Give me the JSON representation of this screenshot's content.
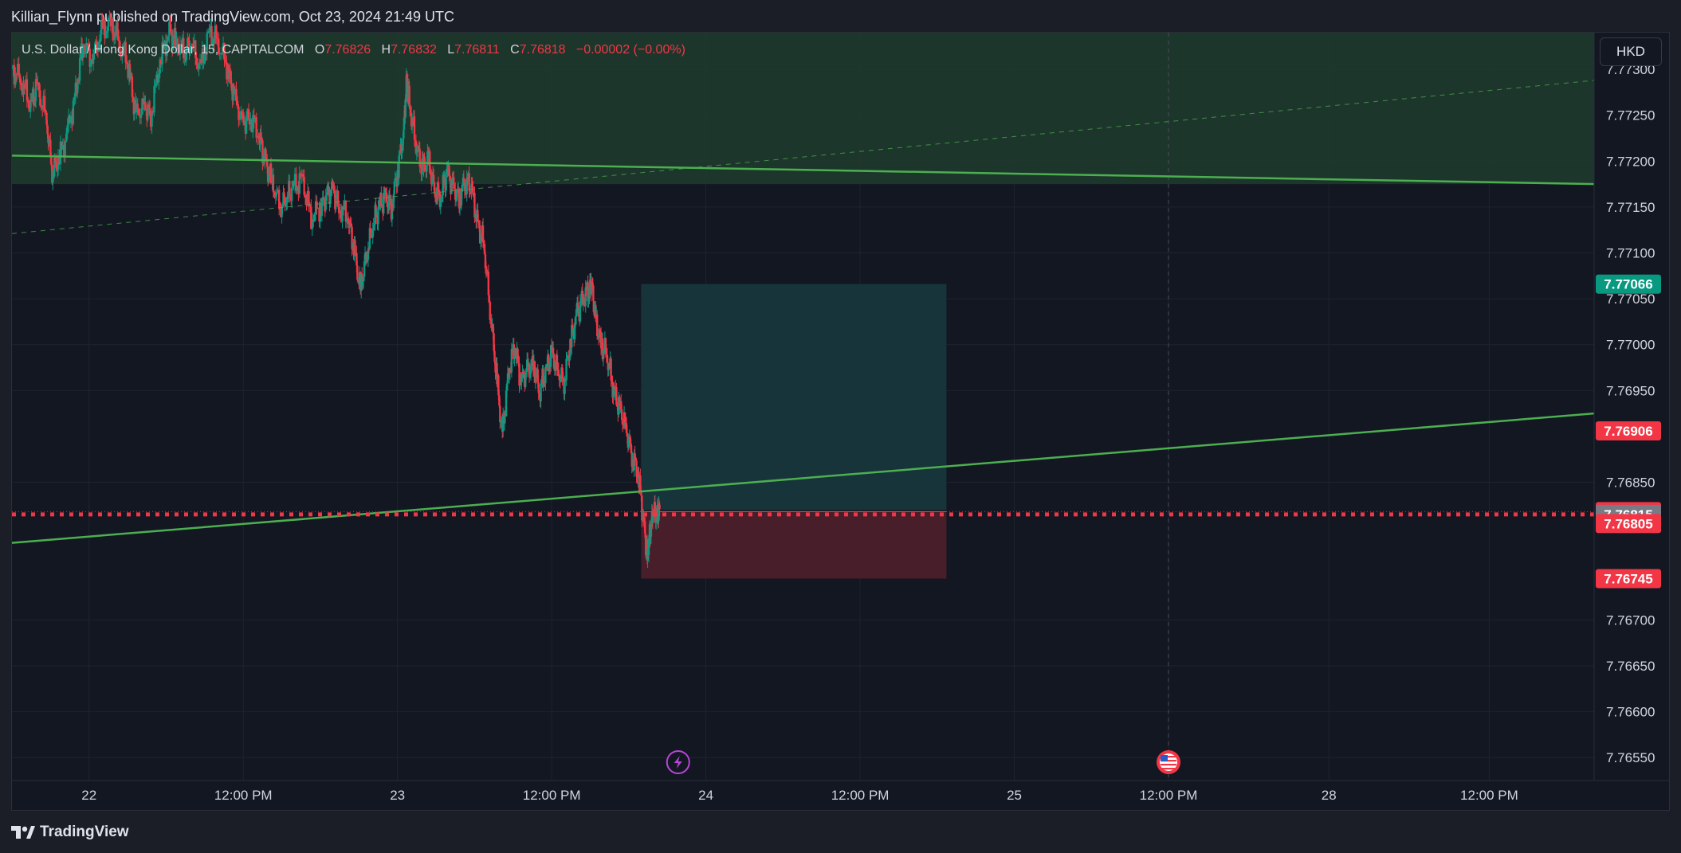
{
  "header": {
    "publisher": "Killian_Flynn published on TradingView.com, Oct 23, 2024 21:49 UTC"
  },
  "legend": {
    "symbol": "U.S. Dollar / Hong Kong Dollar, 15, CAPITALCOM",
    "open_label": "O",
    "open": "7.76826",
    "high_label": "H",
    "high": "7.76832",
    "low_label": "L",
    "low": "7.76811",
    "close_label": "C",
    "close": "7.76818",
    "change": "−0.00002 (−0.00%)"
  },
  "currency_button": "HKD",
  "footer": {
    "brand": "TradingView"
  },
  "colors": {
    "up": "#089981",
    "down": "#f23645",
    "trendline": "#4caf50",
    "zone_green": "#1f3a2c",
    "target_zone": "#17363c",
    "stop_zone": "#4a1f2a",
    "price_red": "#f23645",
    "price_teal": "#089981",
    "price_gray": "#787b86"
  },
  "chart_data": {
    "type": "candlestick",
    "symbol": "USDHKD",
    "timeframe": "15",
    "y_range": [
      7.76525,
      7.7734
    ],
    "x_range": [
      0,
      5.13
    ],
    "y_ticks": [
      "7.77300",
      "7.77250",
      "7.77200",
      "7.77150",
      "7.77100",
      "7.77050",
      "7.77000",
      "7.76950",
      "7.76850",
      "7.76700",
      "7.76650",
      "7.76600",
      "7.76550"
    ],
    "y_tick_values": [
      7.773,
      7.7725,
      7.772,
      7.7715,
      7.771,
      7.7705,
      7.77,
      7.7695,
      7.7685,
      7.767,
      7.7665,
      7.766,
      7.7655
    ],
    "x_ticks": [
      {
        "label": "22",
        "t": 0.25
      },
      {
        "label": "12:00 PM",
        "t": 0.75
      },
      {
        "label": "23",
        "t": 1.25
      },
      {
        "label": "12:00 PM",
        "t": 1.75
      },
      {
        "label": "24",
        "t": 2.25
      },
      {
        "label": "12:00 PM",
        "t": 2.75
      },
      {
        "label": "25",
        "t": 3.25
      },
      {
        "label": "12:00 PM",
        "t": 3.75
      },
      {
        "label": "28",
        "t": 4.27
      },
      {
        "label": "12:00 PM",
        "t": 4.79
      }
    ],
    "price_labels": [
      {
        "value": "7.77066",
        "y": 7.77066,
        "color": "#089981"
      },
      {
        "value": "7.76906",
        "y": 7.76906,
        "color": "#f23645"
      },
      {
        "value": "7.76818",
        "y": 7.76818,
        "color": "#f23645"
      },
      {
        "value": "7.76815",
        "y": 7.76815,
        "color": "#787b86"
      },
      {
        "value": "7.76805",
        "y": 7.76805,
        "color": "#f23645"
      },
      {
        "value": "7.76745",
        "y": 7.76745,
        "color": "#f23645"
      }
    ],
    "close_path": [
      [
        0.0,
        7.773
      ],
      [
        0.03,
        7.7729
      ],
      [
        0.06,
        7.7726
      ],
      [
        0.08,
        7.7728
      ],
      [
        0.11,
        7.7725
      ],
      [
        0.13,
        7.7719
      ],
      [
        0.15,
        7.772
      ],
      [
        0.18,
        7.7723
      ],
      [
        0.21,
        7.7728
      ],
      [
        0.23,
        7.7733
      ],
      [
        0.26,
        7.7731
      ],
      [
        0.29,
        7.7734
      ],
      [
        0.32,
        7.7735
      ],
      [
        0.35,
        7.7733
      ],
      [
        0.38,
        7.773
      ],
      [
        0.4,
        7.7725
      ],
      [
        0.43,
        7.7726
      ],
      [
        0.45,
        7.7725
      ],
      [
        0.48,
        7.7731
      ],
      [
        0.51,
        7.7734
      ],
      [
        0.53,
        7.7733
      ],
      [
        0.56,
        7.7732
      ],
      [
        0.58,
        7.7733
      ],
      [
        0.61,
        7.773
      ],
      [
        0.64,
        7.7734
      ],
      [
        0.67,
        7.7733
      ],
      [
        0.7,
        7.773
      ],
      [
        0.72,
        7.7727
      ],
      [
        0.75,
        7.7724
      ],
      [
        0.77,
        7.7725
      ],
      [
        0.8,
        7.7723
      ],
      [
        0.82,
        7.772
      ],
      [
        0.84,
        7.7718
      ],
      [
        0.87,
        7.7715
      ],
      [
        0.89,
        7.7716
      ],
      [
        0.91,
        7.7717
      ],
      [
        0.94,
        7.7718
      ],
      [
        0.97,
        7.7714
      ],
      [
        1.0,
        7.7715
      ],
      [
        1.02,
        7.7716
      ],
      [
        1.04,
        7.7717
      ],
      [
        1.06,
        7.7715
      ],
      [
        1.09,
        7.7714
      ],
      [
        1.11,
        7.771
      ],
      [
        1.13,
        7.7706
      ],
      [
        1.15,
        7.771
      ],
      [
        1.17,
        7.7713
      ],
      [
        1.19,
        7.7715
      ],
      [
        1.21,
        7.7716
      ],
      [
        1.23,
        7.7715
      ],
      [
        1.25,
        7.7719
      ],
      [
        1.27,
        7.7723
      ],
      [
        1.28,
        7.7729
      ],
      [
        1.29,
        7.7726
      ],
      [
        1.31,
        7.7722
      ],
      [
        1.33,
        7.7719
      ],
      [
        1.35,
        7.772
      ],
      [
        1.37,
        7.7717
      ],
      [
        1.39,
        7.7716
      ],
      [
        1.41,
        7.7719
      ],
      [
        1.43,
        7.7717
      ],
      [
        1.45,
        7.7716
      ],
      [
        1.47,
        7.7718
      ],
      [
        1.49,
        7.7717
      ],
      [
        1.51,
        7.7713
      ],
      [
        1.53,
        7.7711
      ],
      [
        1.55,
        7.7704
      ],
      [
        1.57,
        7.7697
      ],
      [
        1.59,
        7.769
      ],
      [
        1.61,
        7.7697
      ],
      [
        1.63,
        7.77
      ],
      [
        1.65,
        7.7696
      ],
      [
        1.67,
        7.7697
      ],
      [
        1.69,
        7.7698
      ],
      [
        1.71,
        7.7695
      ],
      [
        1.73,
        7.7697
      ],
      [
        1.75,
        7.7699
      ],
      [
        1.77,
        7.7697
      ],
      [
        1.79,
        7.7696
      ],
      [
        1.81,
        7.77
      ],
      [
        1.83,
        7.7703
      ],
      [
        1.85,
        7.7705
      ],
      [
        1.87,
        7.7706
      ],
      [
        1.88,
        7.7707
      ],
      [
        1.89,
        7.7703
      ],
      [
        1.91,
        7.77
      ],
      [
        1.93,
        7.7699
      ],
      [
        1.95,
        7.7695
      ],
      [
        1.97,
        7.7693
      ],
      [
        1.99,
        7.7691
      ],
      [
        2.01,
        7.7688
      ],
      [
        2.03,
        7.7686
      ],
      [
        2.05,
        7.768
      ],
      [
        2.06,
        7.7677
      ],
      [
        2.07,
        7.768
      ],
      [
        2.08,
        7.7682
      ],
      [
        2.09,
        7.7681
      ],
      [
        2.1,
        7.7682
      ]
    ],
    "drawings": {
      "resistance_zone": {
        "y_from": 7.77175,
        "y_to": 7.7734
      },
      "upper_trendline": {
        "points": [
          [
            0,
            7.77206
          ],
          [
            5.13,
            7.77175
          ]
        ]
      },
      "dashed_channel": {
        "points": [
          [
            0,
            7.77121
          ],
          [
            5.13,
            7.77288
          ]
        ]
      },
      "lower_trendline": {
        "points": [
          [
            0,
            7.76784
          ],
          [
            5.13,
            7.76925
          ]
        ]
      },
      "horizontal_dotted": {
        "y": 7.76815
      },
      "target_zone": {
        "t_from": 2.04,
        "t_to": 3.03,
        "y_from": 7.7682,
        "y_to": 7.77066
      },
      "stop_zone": {
        "t_from": 2.04,
        "t_to": 3.03,
        "y_from": 7.76745,
        "y_to": 7.76818
      },
      "current_price_line": {
        "y": 7.76818
      },
      "vertical_dashed": {
        "t": 3.75
      }
    },
    "events": [
      {
        "type": "lightning",
        "t": 2.16
      },
      {
        "type": "us-flag",
        "t": 3.75
      }
    ]
  }
}
